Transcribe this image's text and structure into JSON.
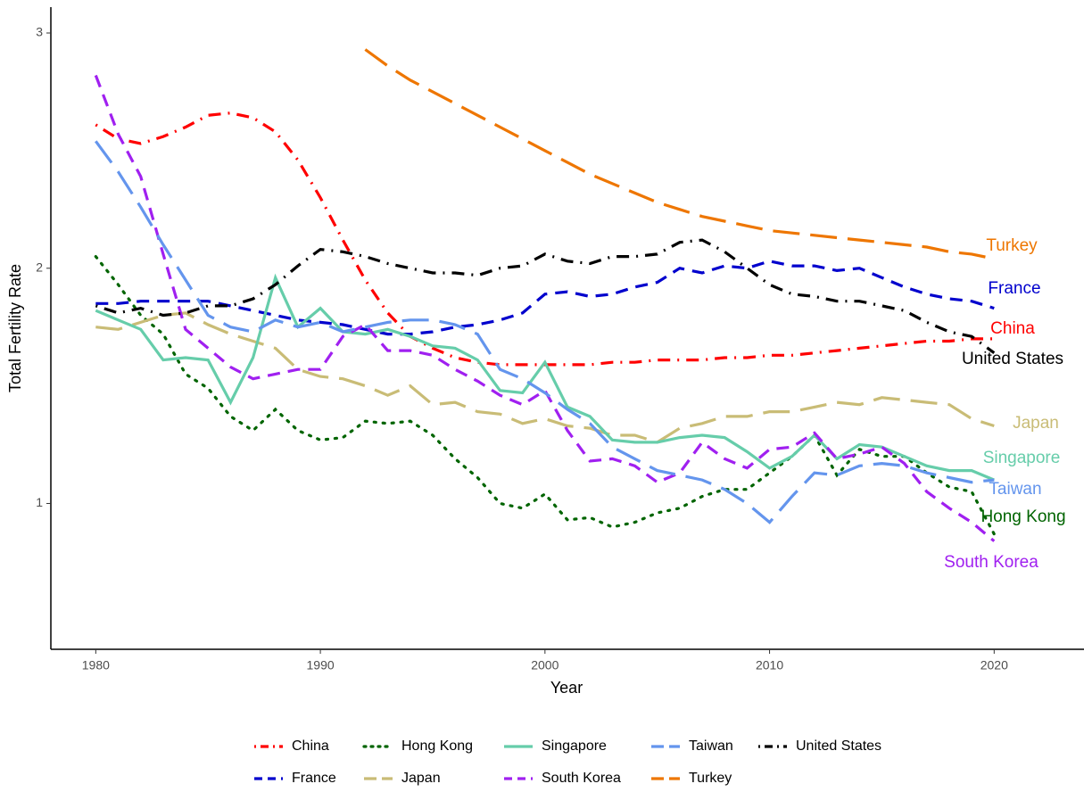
{
  "chart_data": {
    "type": "line",
    "x_label": "Year",
    "y_label": "Total Fertility Rate",
    "x": [
      1980,
      1981,
      1982,
      1983,
      1984,
      1985,
      1986,
      1987,
      1988,
      1989,
      1990,
      1991,
      1992,
      1993,
      1994,
      1995,
      1996,
      1997,
      1998,
      1999,
      2000,
      2001,
      2002,
      2003,
      2004,
      2005,
      2006,
      2007,
      2008,
      2009,
      2010,
      2011,
      2012,
      2013,
      2014,
      2015,
      2016,
      2017,
      2018,
      2019,
      2020
    ],
    "xlim": [
      1978,
      2024
    ],
    "xticks": [
      1980,
      1990,
      2000,
      2010,
      2020
    ],
    "ylim": [
      0.38,
      3.11
    ],
    "yticks": [
      1,
      2,
      3
    ],
    "grid": false,
    "legend": "bottom",
    "end_labels": true,
    "series": [
      {
        "name": "China",
        "color": "#ff0000",
        "linestyle": "dotdash",
        "values": [
          2.61,
          2.55,
          2.53,
          2.56,
          2.6,
          2.65,
          2.66,
          2.64,
          2.58,
          2.46,
          2.3,
          2.12,
          1.95,
          1.81,
          1.71,
          1.66,
          1.62,
          1.6,
          1.59,
          1.59,
          1.59,
          1.59,
          1.59,
          1.6,
          1.6,
          1.61,
          1.61,
          1.61,
          1.62,
          1.62,
          1.63,
          1.63,
          1.64,
          1.65,
          1.66,
          1.67,
          1.68,
          1.69,
          1.69,
          1.7,
          1.7
        ]
      },
      {
        "name": "France",
        "color": "#0000cd",
        "linestyle": "dashed",
        "values": [
          1.85,
          1.85,
          1.86,
          1.86,
          1.86,
          1.86,
          1.84,
          1.82,
          1.8,
          1.78,
          1.77,
          1.76,
          1.74,
          1.72,
          1.72,
          1.73,
          1.75,
          1.76,
          1.78,
          1.81,
          1.89,
          1.9,
          1.88,
          1.89,
          1.92,
          1.94,
          2.0,
          1.98,
          2.01,
          2.0,
          2.03,
          2.01,
          2.01,
          1.99,
          2.0,
          1.96,
          1.92,
          1.89,
          1.87,
          1.86,
          1.83
        ]
      },
      {
        "name": "Hong Kong",
        "color": "#006400",
        "linestyle": "dotted",
        "values": [
          2.05,
          1.93,
          1.8,
          1.72,
          1.55,
          1.49,
          1.37,
          1.31,
          1.4,
          1.31,
          1.27,
          1.28,
          1.35,
          1.34,
          1.35,
          1.29,
          1.19,
          1.11,
          1.0,
          0.98,
          1.04,
          0.93,
          0.94,
          0.9,
          0.92,
          0.96,
          0.98,
          1.03,
          1.06,
          1.06,
          1.13,
          1.2,
          1.29,
          1.12,
          1.23,
          1.2,
          1.2,
          1.13,
          1.07,
          1.05,
          0.87
        ]
      },
      {
        "name": "Japan",
        "color": "#c9bc76",
        "linestyle": "longdash",
        "values": [
          1.75,
          1.74,
          1.77,
          1.8,
          1.81,
          1.76,
          1.72,
          1.69,
          1.66,
          1.57,
          1.54,
          1.53,
          1.5,
          1.46,
          1.5,
          1.42,
          1.43,
          1.39,
          1.38,
          1.34,
          1.36,
          1.33,
          1.32,
          1.29,
          1.29,
          1.26,
          1.32,
          1.34,
          1.37,
          1.37,
          1.39,
          1.39,
          1.41,
          1.43,
          1.42,
          1.45,
          1.44,
          1.43,
          1.42,
          1.36,
          1.33
        ]
      },
      {
        "name": "Singapore",
        "color": "#66cdaa",
        "linestyle": "solid",
        "values": [
          1.82,
          1.78,
          1.74,
          1.61,
          1.62,
          1.61,
          1.43,
          1.62,
          1.96,
          1.75,
          1.83,
          1.73,
          1.72,
          1.74,
          1.71,
          1.67,
          1.66,
          1.61,
          1.48,
          1.47,
          1.6,
          1.41,
          1.37,
          1.27,
          1.26,
          1.26,
          1.28,
          1.29,
          1.28,
          1.22,
          1.15,
          1.2,
          1.29,
          1.19,
          1.25,
          1.24,
          1.2,
          1.16,
          1.14,
          1.14,
          1.1
        ]
      },
      {
        "name": "South Korea",
        "color": "#a020f0",
        "linestyle": "dashed",
        "values": [
          2.82,
          2.57,
          2.39,
          2.06,
          1.74,
          1.66,
          1.58,
          1.53,
          1.55,
          1.57,
          1.57,
          1.71,
          1.76,
          1.65,
          1.65,
          1.63,
          1.57,
          1.52,
          1.46,
          1.42,
          1.48,
          1.31,
          1.18,
          1.19,
          1.16,
          1.09,
          1.13,
          1.26,
          1.19,
          1.15,
          1.23,
          1.24,
          1.3,
          1.19,
          1.21,
          1.24,
          1.17,
          1.05,
          0.98,
          0.92,
          0.84
        ]
      },
      {
        "name": "Taiwan",
        "color": "#6495ed",
        "linestyle": "longdash",
        "values": [
          2.54,
          2.41,
          2.26,
          2.1,
          1.95,
          1.8,
          1.75,
          1.73,
          1.78,
          1.75,
          1.77,
          1.73,
          1.75,
          1.77,
          1.78,
          1.78,
          1.76,
          1.72,
          1.57,
          1.53,
          1.47,
          1.4,
          1.34,
          1.24,
          1.19,
          1.14,
          1.12,
          1.1,
          1.06,
          1.0,
          0.92,
          1.03,
          1.13,
          1.12,
          1.16,
          1.17,
          1.16,
          1.13,
          1.11,
          1.09,
          1.1
        ]
      },
      {
        "name": "Turkey",
        "color": "#ee7600",
        "linestyle": "longdash",
        "values": [
          null,
          null,
          null,
          null,
          null,
          null,
          null,
          null,
          null,
          null,
          null,
          null,
          2.93,
          2.86,
          2.8,
          2.75,
          2.7,
          2.65,
          2.6,
          2.55,
          2.5,
          2.45,
          2.4,
          2.36,
          2.32,
          2.28,
          2.25,
          2.22,
          2.2,
          2.18,
          2.16,
          2.15,
          2.14,
          2.13,
          2.12,
          2.11,
          2.1,
          2.09,
          2.07,
          2.06,
          2.04
        ]
      },
      {
        "name": "United States",
        "color": "#000000",
        "linestyle": "dotdash",
        "values": [
          1.84,
          1.81,
          1.83,
          1.8,
          1.81,
          1.84,
          1.84,
          1.87,
          1.93,
          2.01,
          2.08,
          2.07,
          2.05,
          2.02,
          2.0,
          1.98,
          1.98,
          1.97,
          2.0,
          2.01,
          2.06,
          2.03,
          2.02,
          2.05,
          2.05,
          2.06,
          2.11,
          2.12,
          2.07,
          2.0,
          1.93,
          1.89,
          1.88,
          1.86,
          1.86,
          1.84,
          1.82,
          1.77,
          1.73,
          1.71,
          1.64
        ]
      }
    ]
  }
}
